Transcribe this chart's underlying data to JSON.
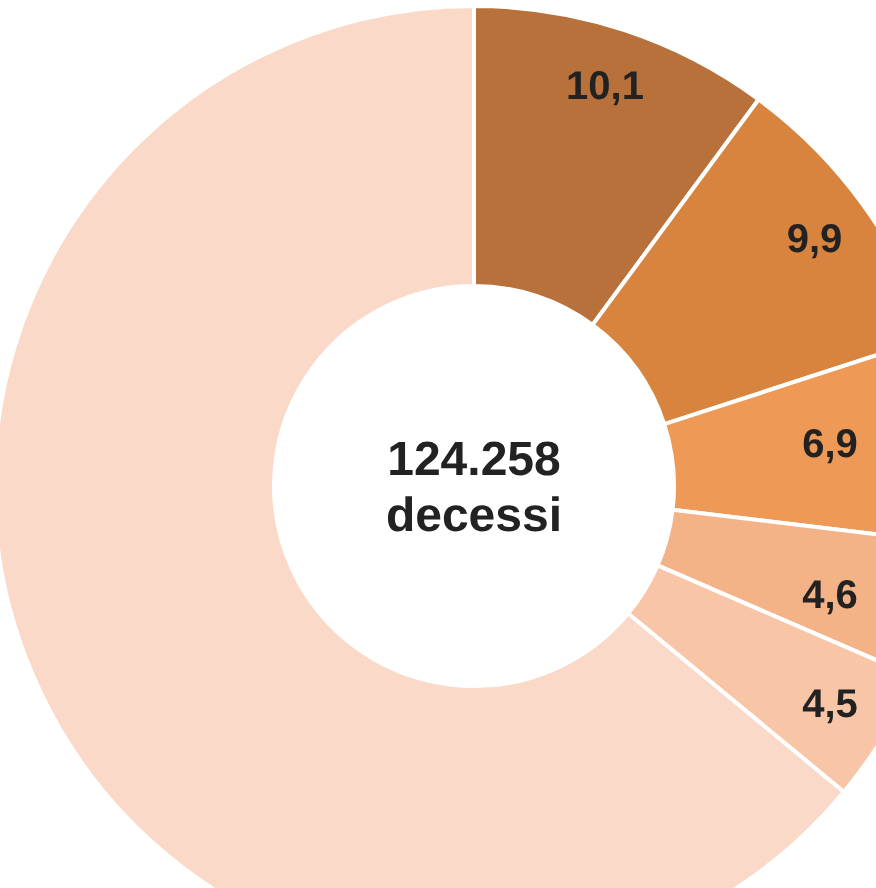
{
  "chart_data": {
    "type": "donut",
    "categories": [
      null,
      null,
      null,
      null,
      null,
      null
    ],
    "values": [
      10.1,
      9.9,
      6.9,
      4.6,
      4.5,
      64.0
    ],
    "value_labels": [
      "10,1",
      "9,9",
      "6,9",
      "4,6",
      "4,5",
      null
    ],
    "colors": [
      "#b8713a",
      "#d8843f",
      "#ee9a56",
      "#f4b287",
      "#f8c6a7",
      "#fad9c9"
    ],
    "annotations": [
      "124.258",
      "decessi"
    ],
    "legend": false
  }
}
